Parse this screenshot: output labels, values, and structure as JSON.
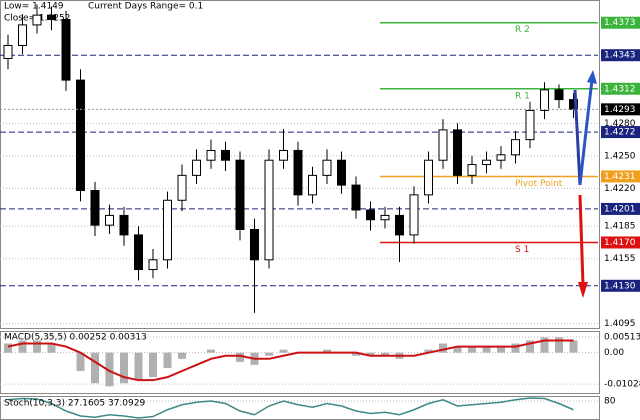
{
  "chart_data": [
    {
      "type": "candlestick",
      "info": [
        "Low= 1.4149",
        "Current Days Range= 0.1",
        "Close= 1.4252"
      ],
      "open": [
        1.434,
        1.4352,
        1.4371,
        1.438,
        1.4376,
        1.432,
        1.4218,
        1.4186,
        1.4195,
        1.4177,
        1.4145,
        1.4154,
        1.4209,
        1.4232,
        1.4246,
        1.4255,
        1.4246,
        1.4182,
        1.4154,
        1.4246,
        1.4255,
        1.4214,
        1.4232,
        1.4246,
        1.4223,
        1.42,
        1.4191,
        1.4195,
        1.4177,
        1.4214,
        1.4246,
        1.4274,
        1.4232,
        1.4242,
        1.4246,
        1.4251,
        1.4265,
        1.4292,
        1.4311,
        1.4302
      ],
      "high": [
        1.4362,
        1.4381,
        1.439,
        1.4388,
        1.4384,
        1.433,
        1.4226,
        1.4205,
        1.4203,
        1.4185,
        1.4164,
        1.4217,
        1.4242,
        1.4256,
        1.4265,
        1.4263,
        1.4254,
        1.4192,
        1.4256,
        1.4275,
        1.4263,
        1.424,
        1.4256,
        1.4254,
        1.4231,
        1.4208,
        1.4203,
        1.4203,
        1.4222,
        1.4254,
        1.4284,
        1.428,
        1.425,
        1.4254,
        1.4259,
        1.4273,
        1.43,
        1.4318,
        1.4316,
        1.4308
      ],
      "low": [
        1.433,
        1.4344,
        1.4363,
        1.4366,
        1.431,
        1.4208,
        1.4176,
        1.4178,
        1.4167,
        1.4135,
        1.4137,
        1.4146,
        1.4199,
        1.4224,
        1.4238,
        1.4236,
        1.4172,
        1.4105,
        1.4146,
        1.4238,
        1.4204,
        1.4206,
        1.4224,
        1.4215,
        1.4192,
        1.4181,
        1.4183,
        1.4152,
        1.4169,
        1.4206,
        1.4238,
        1.4224,
        1.4224,
        1.4234,
        1.4238,
        1.4243,
        1.4257,
        1.4284,
        1.4294,
        1.4285
      ],
      "close": [
        1.4352,
        1.4371,
        1.438,
        1.4376,
        1.432,
        1.4218,
        1.4186,
        1.4195,
        1.4177,
        1.4145,
        1.4154,
        1.4209,
        1.4232,
        1.4246,
        1.4255,
        1.4246,
        1.4182,
        1.4154,
        1.4246,
        1.4255,
        1.4214,
        1.4232,
        1.4246,
        1.4223,
        1.42,
        1.4191,
        1.4195,
        1.4177,
        1.4214,
        1.4246,
        1.4274,
        1.4232,
        1.4242,
        1.4246,
        1.4251,
        1.4265,
        1.4292,
        1.4311,
        1.4302,
        1.4293
      ],
      "ylim": [
        1.4091,
        1.4394
      ],
      "yticks": [
        {
          "value": 1.428,
          "label": "1.4280"
        },
        {
          "value": 1.425,
          "label": "1.4250"
        },
        {
          "value": 1.422,
          "label": "1.4220"
        },
        1.4185,
        1.4155,
        1.4095
      ],
      "levels": [
        {
          "name": "R 2",
          "value": 1.4373,
          "color": "#3cb43c"
        },
        {
          "name": "R 1",
          "value": 1.4312,
          "color": "#3cb43c"
        },
        {
          "name": "Pivot Point",
          "value": 1.4231,
          "color": "#f0a020"
        },
        {
          "name": "S 1",
          "value": {
            "value": 1.417,
            "label": "1.4170"
          },
          "color": "#dd1111"
        }
      ],
      "lines": [
        1.4343,
        1.4272,
        1.4201,
        {
          "value": 1.413,
          "label": "1.4130"
        }
      ],
      "line_color": "#1a237e",
      "last": 1.4293
    },
    {
      "type": "macd",
      "label": "MACD(5,35,5) 0.00252 0.00313",
      "values": [
        0.003,
        0.004,
        0.004,
        0.003,
        0.0,
        -0.006,
        -0.01,
        -0.011,
        -0.01,
        -0.009,
        -0.008,
        -0.005,
        -0.002,
        0.0,
        0.001,
        0.0,
        -0.003,
        -0.004,
        -0.001,
        0.001,
        0.0,
        0.0,
        0.001,
        0.0,
        -0.001,
        -0.001,
        -0.001,
        -0.002,
        0.0,
        0.001,
        0.003,
        0.002,
        0.002,
        0.002,
        0.002,
        0.003,
        0.004,
        0.005,
        0.005,
        0.004
      ],
      "signal": [
        0.002,
        0.003,
        0.003,
        0.003,
        0.002,
        0.0,
        -0.003,
        -0.006,
        -0.008,
        -0.009,
        -0.009,
        -0.008,
        -0.006,
        -0.004,
        -0.002,
        -0.001,
        -0.001,
        -0.002,
        -0.002,
        -0.001,
        0.0,
        0.0,
        0.0,
        0.0,
        0.0,
        -0.001,
        -0.001,
        -0.001,
        -0.001,
        0.0,
        0.001,
        0.002,
        0.002,
        0.002,
        0.002,
        0.002,
        0.003,
        0.004,
        0.004,
        0.004
      ],
      "color": "#b0b0b0",
      "signal_color": "#cc1111",
      "ylim": [
        -0.0132,
        0.0071
      ],
      "yticks": [
        0.00513,
        {
          "value": 0,
          "label": "0.00"
        },
        -0.01028
      ]
    },
    {
      "type": "stoch",
      "label": "Stoch(10,3,3) 27.1605 37.0929",
      "values": [
        85,
        90,
        88,
        70,
        40,
        20,
        15,
        25,
        20,
        12,
        18,
        45,
        65,
        75,
        80,
        70,
        40,
        25,
        60,
        80,
        65,
        55,
        70,
        60,
        40,
        30,
        35,
        25,
        45,
        70,
        85,
        60,
        65,
        70,
        75,
        85,
        92,
        90,
        70,
        45
      ],
      "color": "#3a8a8a",
      "ylim": [
        0,
        100
      ],
      "yticks": [
        80
      ]
    }
  ]
}
